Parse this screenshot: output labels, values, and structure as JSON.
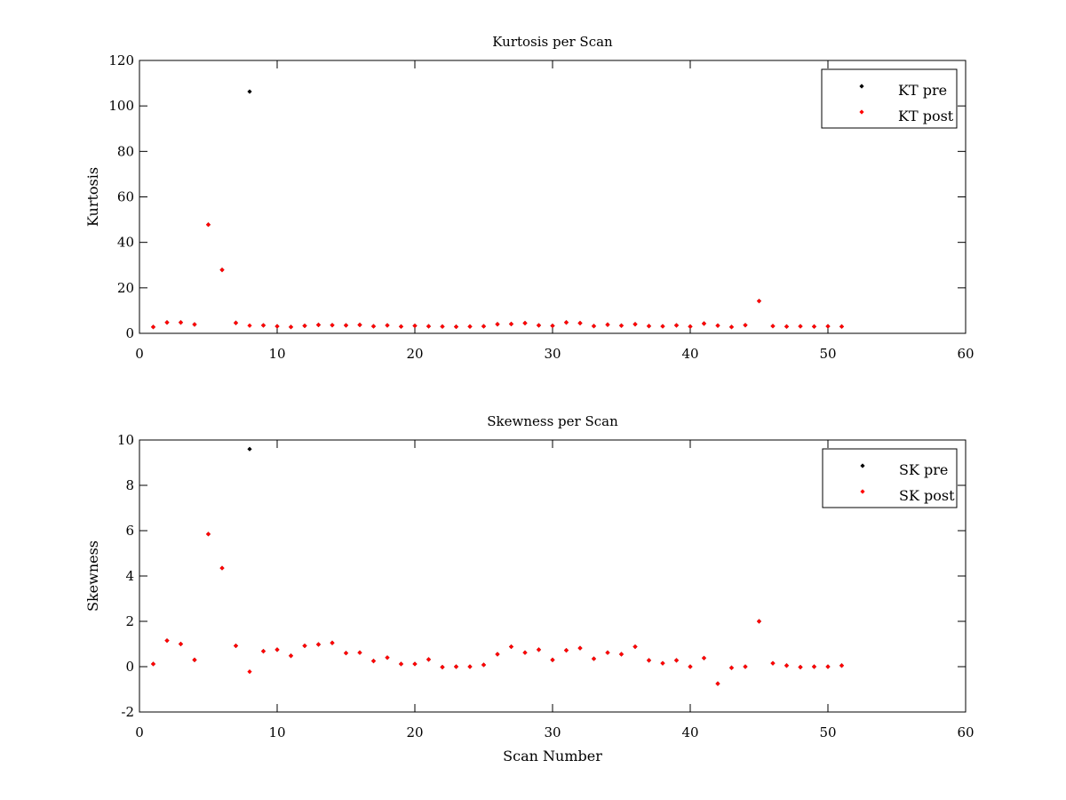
{
  "chart_data": [
    {
      "type": "scatter",
      "title": "Kurtosis per Scan",
      "xlabel": "",
      "ylabel": "Kurtosis",
      "xlim": [
        0,
        60
      ],
      "ylim": [
        0,
        120
      ],
      "xticks": [
        0,
        10,
        20,
        30,
        40,
        50,
        60
      ],
      "yticks": [
        0,
        20,
        40,
        60,
        80,
        100,
        120
      ],
      "legend_position": "top-right",
      "series": [
        {
          "name": "KT pre",
          "color": "#000000",
          "x": [
            1,
            2,
            3,
            4,
            5,
            6,
            7,
            8,
            9,
            10,
            11,
            12,
            13,
            14,
            15,
            16,
            17,
            18,
            19,
            20,
            21,
            22,
            23,
            24,
            25,
            26,
            27,
            28,
            29,
            30,
            31,
            32,
            33,
            34,
            35,
            36,
            37,
            38,
            39,
            40,
            41,
            42,
            43,
            44,
            45,
            46,
            47,
            48,
            49,
            50,
            51
          ],
          "y": [
            2.8,
            4.8,
            4.8,
            3.9,
            47.8,
            27.9,
            4.6,
            106.3,
            3.5,
            3.1,
            2.8,
            3.3,
            3.7,
            3.6,
            3.5,
            3.7,
            3.1,
            3.5,
            3.0,
            3.3,
            3.1,
            3.0,
            2.9,
            3.0,
            3.1,
            4.0,
            4.1,
            4.5,
            3.5,
            3.3,
            4.8,
            4.5,
            3.2,
            3.8,
            3.4,
            4.0,
            3.2,
            3.1,
            3.5,
            3.0,
            4.3,
            3.4,
            2.8,
            3.6,
            14.2,
            3.2,
            3.0,
            3.1,
            3.0,
            3.1,
            3.0
          ]
        },
        {
          "name": "KT post",
          "color": "#ff0000",
          "x": [
            1,
            2,
            3,
            4,
            5,
            6,
            7,
            8,
            9,
            10,
            11,
            12,
            13,
            14,
            15,
            16,
            17,
            18,
            19,
            20,
            21,
            22,
            23,
            24,
            25,
            26,
            27,
            28,
            29,
            30,
            31,
            32,
            33,
            34,
            35,
            36,
            37,
            38,
            39,
            40,
            41,
            42,
            43,
            44,
            45,
            46,
            47,
            48,
            49,
            50,
            51
          ],
          "y": [
            2.8,
            4.8,
            4.8,
            3.9,
            47.8,
            27.9,
            4.6,
            3.4,
            3.5,
            3.1,
            2.8,
            3.3,
            3.7,
            3.6,
            3.5,
            3.7,
            3.1,
            3.5,
            3.0,
            3.3,
            3.1,
            3.0,
            2.9,
            3.0,
            3.1,
            4.0,
            4.1,
            4.5,
            3.5,
            3.3,
            4.8,
            4.5,
            3.2,
            3.8,
            3.4,
            4.0,
            3.2,
            3.1,
            3.5,
            3.0,
            4.3,
            3.4,
            2.8,
            3.6,
            14.2,
            3.2,
            3.0,
            3.1,
            3.0,
            3.1,
            3.0
          ]
        }
      ]
    },
    {
      "type": "scatter",
      "title": "Skewness per Scan",
      "xlabel": "Scan Number",
      "ylabel": "Skewness",
      "xlim": [
        0,
        60
      ],
      "ylim": [
        -2,
        10
      ],
      "xticks": [
        0,
        10,
        20,
        30,
        40,
        50,
        60
      ],
      "yticks": [
        -2,
        0,
        2,
        4,
        6,
        8,
        10
      ],
      "legend_position": "top-right",
      "series": [
        {
          "name": "SK pre",
          "color": "#000000",
          "x": [
            1,
            2,
            3,
            4,
            5,
            6,
            7,
            8,
            9,
            10,
            11,
            12,
            13,
            14,
            15,
            16,
            17,
            18,
            19,
            20,
            21,
            22,
            23,
            24,
            25,
            26,
            27,
            28,
            29,
            30,
            31,
            32,
            33,
            34,
            35,
            36,
            37,
            38,
            39,
            40,
            41,
            42,
            43,
            44,
            45,
            46,
            47,
            48,
            49,
            50,
            51
          ],
          "y": [
            0.12,
            1.15,
            1.0,
            0.3,
            5.85,
            4.35,
            0.92,
            9.6,
            0.68,
            0.75,
            0.48,
            0.92,
            0.98,
            1.05,
            0.6,
            0.62,
            0.25,
            0.4,
            0.12,
            0.12,
            0.32,
            -0.02,
            0.0,
            0.0,
            0.08,
            0.55,
            0.88,
            0.62,
            0.75,
            0.3,
            0.72,
            0.82,
            0.35,
            0.62,
            0.55,
            0.88,
            0.28,
            0.15,
            0.28,
            0.0,
            0.38,
            -0.75,
            -0.05,
            0.0,
            2.0,
            0.15,
            0.05,
            -0.02,
            0.0,
            0.0,
            0.05
          ]
        },
        {
          "name": "SK post",
          "color": "#ff0000",
          "x": [
            1,
            2,
            3,
            4,
            5,
            6,
            7,
            8,
            9,
            10,
            11,
            12,
            13,
            14,
            15,
            16,
            17,
            18,
            19,
            20,
            21,
            22,
            23,
            24,
            25,
            26,
            27,
            28,
            29,
            30,
            31,
            32,
            33,
            34,
            35,
            36,
            37,
            38,
            39,
            40,
            41,
            42,
            43,
            44,
            45,
            46,
            47,
            48,
            49,
            50,
            51
          ],
          "y": [
            0.12,
            1.15,
            1.0,
            0.3,
            5.85,
            4.35,
            0.92,
            -0.22,
            0.68,
            0.75,
            0.48,
            0.92,
            0.98,
            1.05,
            0.6,
            0.62,
            0.25,
            0.4,
            0.12,
            0.12,
            0.32,
            -0.02,
            0.0,
            0.0,
            0.08,
            0.55,
            0.88,
            0.62,
            0.75,
            0.3,
            0.72,
            0.82,
            0.35,
            0.62,
            0.55,
            0.88,
            0.28,
            0.15,
            0.28,
            0.0,
            0.38,
            -0.75,
            -0.05,
            0.0,
            2.0,
            0.15,
            0.05,
            -0.02,
            0.0,
            0.0,
            0.05
          ]
        }
      ]
    }
  ]
}
